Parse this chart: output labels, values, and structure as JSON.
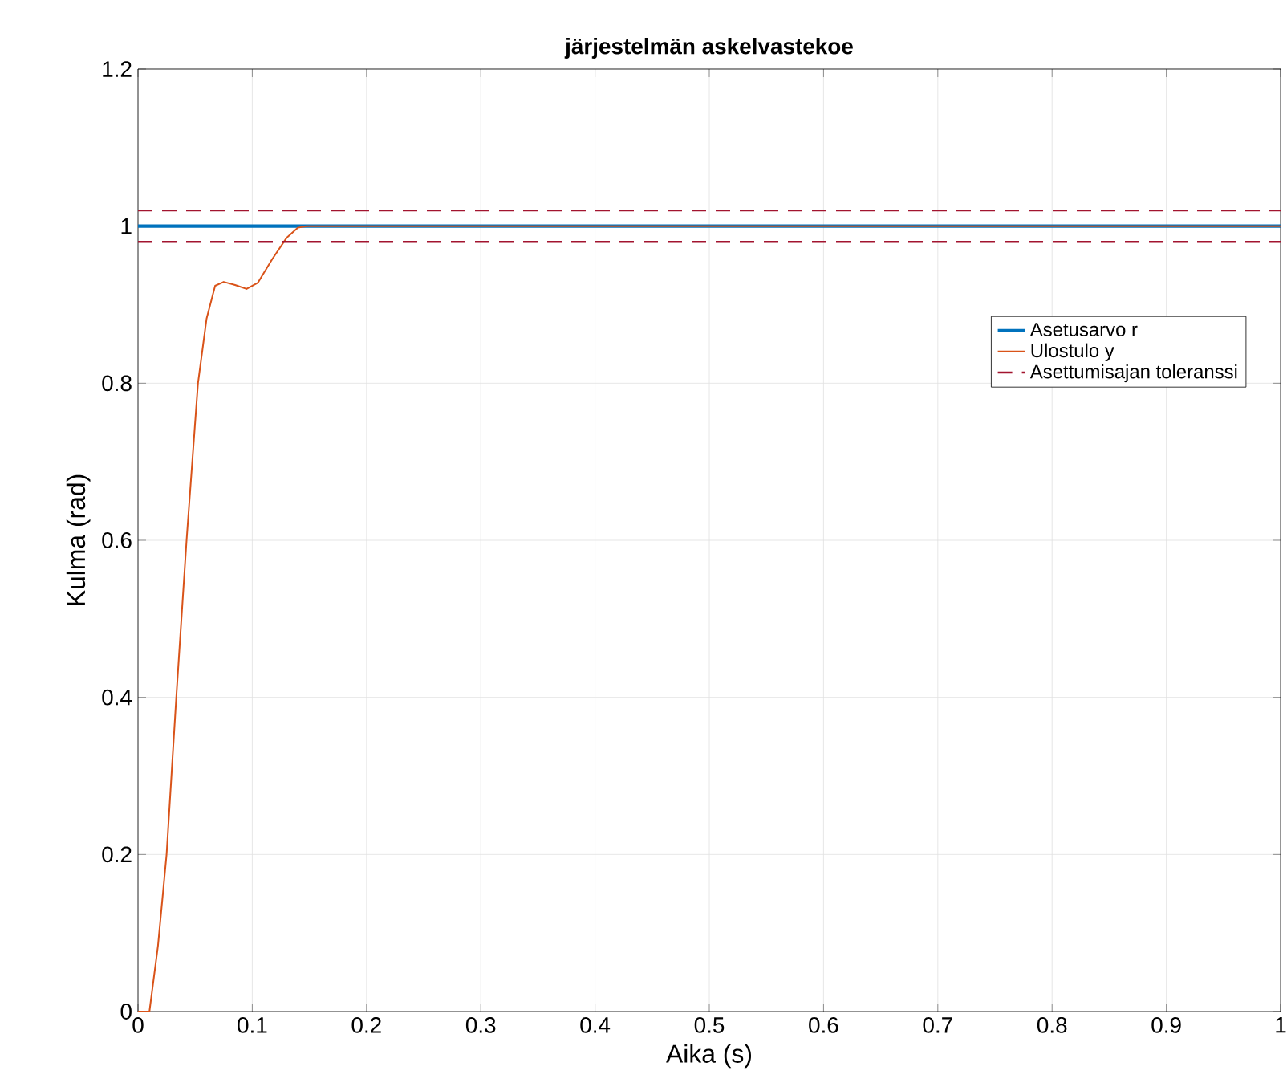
{
  "chart_data": {
    "type": "line",
    "title": "järjestelmän askelvastekoe",
    "xlabel": "Aika (s)",
    "ylabel": "Kulma (rad)",
    "xlim": [
      0,
      1
    ],
    "ylim": [
      0,
      1.2
    ],
    "xticks": [
      0,
      0.1,
      0.2,
      0.3,
      0.4,
      0.5,
      0.6,
      0.7,
      0.8,
      0.9,
      1
    ],
    "yticks": [
      0,
      0.2,
      0.4,
      0.6,
      0.8,
      1,
      1.2
    ],
    "grid": true,
    "legend": "right",
    "line_style": "solid",
    "marker": "none",
    "series": [
      {
        "name": "Asetusarvo r",
        "color": "#0072bd",
        "x": [
          0,
          1
        ],
        "values": [
          1,
          1
        ]
      },
      {
        "name": "Ulostulo y",
        "color": "#d95319",
        "x": [
          0,
          0.01,
          0.0175,
          0.025,
          0.0335,
          0.0425,
          0.0525,
          0.06,
          0.0675,
          0.075,
          0.085,
          0.095,
          0.105,
          0.1175,
          0.13,
          0.14,
          0.1475,
          1
        ],
        "values": [
          0,
          0,
          0.084,
          0.2,
          0.4,
          0.6,
          0.8,
          0.882,
          0.924,
          0.929,
          0.925,
          0.92,
          0.928,
          0.958,
          0.985,
          0.998,
          1,
          1
        ]
      }
    ],
    "ref_lines": [
      {
        "axis": "y",
        "value": 1.02,
        "label": "Asettumisajan toleranssi",
        "color": "#a2142f",
        "line_style": "dashed"
      },
      {
        "axis": "y",
        "value": 0.98,
        "color": "#a2142f",
        "line_style": "dashed"
      }
    ]
  }
}
